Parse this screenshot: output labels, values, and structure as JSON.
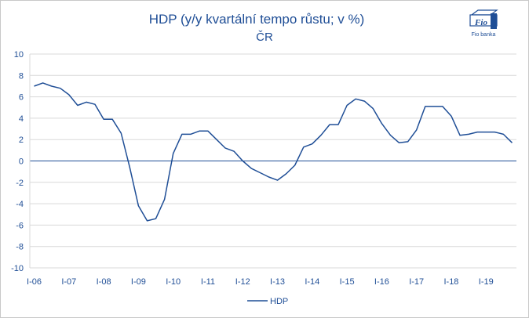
{
  "chart_data": {
    "type": "line",
    "title": "HDP (y/y kvartální tempo růstu; v %)",
    "subtitle": "ČR",
    "xlabel": "",
    "ylabel": "",
    "ylim": [
      -10,
      10
    ],
    "yticks": [
      "10",
      "8",
      "6",
      "4",
      "2",
      "0",
      "-2",
      "-4",
      "-6",
      "-8",
      "-10"
    ],
    "xticks": [
      "I-06",
      "I-07",
      "I-08",
      "I-09",
      "I-10",
      "I-11",
      "I-12",
      "I-13",
      "I-14",
      "I-15",
      "I-16",
      "I-17",
      "I-18",
      "I-19"
    ],
    "grid": true,
    "legend": {
      "position": "bottom",
      "entries": [
        "HDP"
      ]
    },
    "colors": {
      "line": "#1f4e96",
      "title": "#1f4e96",
      "grid": "#d9d9d9",
      "zero_axis": "#1f4e96",
      "text": "#1f4e96"
    },
    "x": [
      "I-06",
      "II-06",
      "III-06",
      "IV-06",
      "I-07",
      "II-07",
      "III-07",
      "IV-07",
      "I-08",
      "II-08",
      "III-08",
      "IV-08",
      "I-09",
      "II-09",
      "III-09",
      "IV-09",
      "I-10",
      "II-10",
      "III-10",
      "IV-10",
      "I-11",
      "II-11",
      "III-11",
      "IV-11",
      "I-12",
      "II-12",
      "III-12",
      "IV-12",
      "I-13",
      "II-13",
      "III-13",
      "IV-13",
      "I-14",
      "II-14",
      "III-14",
      "IV-14",
      "I-15",
      "II-15",
      "III-15",
      "IV-15",
      "I-16",
      "II-16",
      "III-16",
      "IV-16",
      "I-17",
      "II-17",
      "III-17",
      "IV-17",
      "I-18",
      "II-18",
      "III-18",
      "IV-18",
      "I-19",
      "II-19",
      "III-19",
      "IV-19"
    ],
    "series": [
      {
        "name": "HDP",
        "values": [
          7.0,
          7.3,
          7.0,
          6.8,
          6.2,
          5.2,
          5.5,
          5.3,
          3.9,
          3.9,
          2.6,
          -0.6,
          -4.2,
          -5.6,
          -5.4,
          -3.6,
          0.7,
          2.5,
          2.5,
          2.8,
          2.8,
          2.0,
          1.2,
          0.9,
          0.0,
          -0.7,
          -1.1,
          -1.5,
          -1.8,
          -1.2,
          -0.4,
          1.3,
          1.6,
          2.4,
          3.4,
          3.4,
          5.2,
          5.8,
          5.6,
          4.9,
          3.5,
          2.4,
          1.7,
          1.8,
          2.9,
          5.1,
          5.1,
          5.1,
          4.2,
          2.4,
          2.5,
          2.7,
          2.7,
          2.7,
          2.5,
          1.7
        ]
      }
    ]
  },
  "logo": {
    "text": "Fio banka",
    "monogram": "Fio"
  }
}
